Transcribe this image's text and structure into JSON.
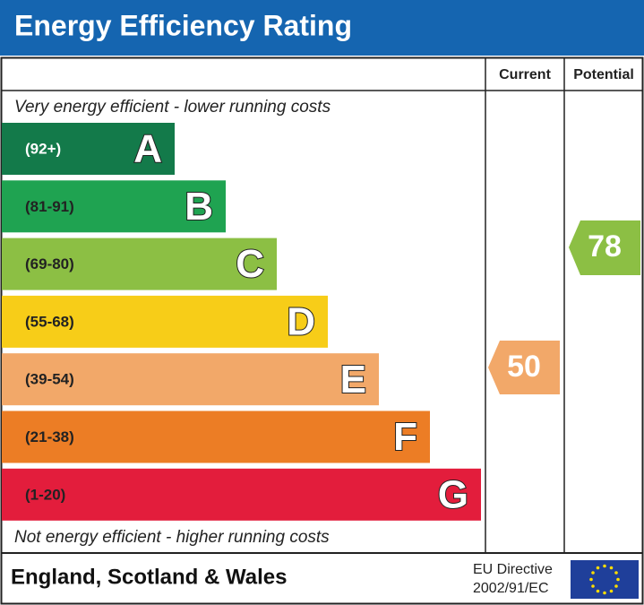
{
  "header": {
    "title": "Energy Efficiency Rating"
  },
  "columns": {
    "current": "Current",
    "potential": "Potential"
  },
  "top_note": "Very energy efficient - lower running costs",
  "bands": [
    {
      "range": "(92+)",
      "letter": "A",
      "color": "#137a4a"
    },
    {
      "range": "(81-91)",
      "letter": "B",
      "color": "#1fa351"
    },
    {
      "range": "(69-80)",
      "letter": "C",
      "color": "#8cbf44"
    },
    {
      "range": "(55-68)",
      "letter": "D",
      "color": "#f7cd18"
    },
    {
      "range": "(39-54)",
      "letter": "E",
      "color": "#f2a869"
    },
    {
      "range": "(21-38)",
      "letter": "F",
      "color": "#ec7d25"
    },
    {
      "range": "(1-20)",
      "letter": "G",
      "color": "#e31d3c"
    }
  ],
  "bottom_note": "Not energy efficient - higher running costs",
  "current": {
    "value": 50,
    "color": "#f2a869"
  },
  "potential": {
    "value": 78,
    "color": "#8cbf44"
  },
  "footer": {
    "region": "England, Scotland & Wales",
    "directive_line1": "EU Directive",
    "directive_line2": "2002/91/EC"
  }
}
